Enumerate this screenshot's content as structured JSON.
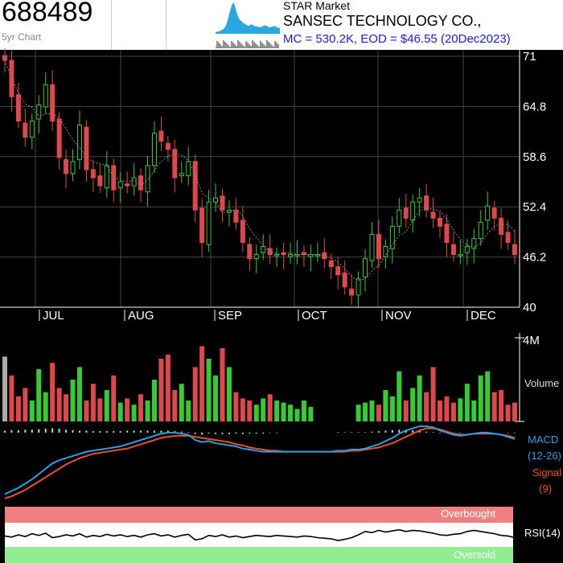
{
  "header": {
    "ticker": "688489",
    "period": "5yr Chart",
    "market": "STAR Market",
    "company": "SANSEC TECHNOLOGY CO.,",
    "summary": "MC = 530.2K, EOD = $46.55 (20Dec2023)"
  },
  "chart_data": [
    {
      "type": "candlestick",
      "y_ticks": [
        "71",
        "64.8",
        "58.6",
        "52.4",
        "46.2",
        "40"
      ],
      "ylim": [
        40,
        71
      ],
      "x_ticks": [
        "JUL",
        "AUG",
        "SEP",
        "OCT",
        "NOV",
        "DEC"
      ],
      "close": [
        70.5,
        66,
        63,
        61,
        63,
        65,
        67.5,
        63,
        58.5,
        56.5,
        58,
        62.5,
        57,
        56,
        55,
        57.5,
        54.5,
        55.5,
        55,
        56,
        54.5,
        57.5,
        61.5,
        60.5,
        59.5,
        56,
        56.5,
        58,
        52,
        48,
        53,
        53.5,
        52,
        52,
        50.5,
        48,
        46,
        46.5,
        47.5,
        46.5,
        46.5,
        46.5,
        46.5,
        46.5,
        46.5,
        46.5,
        46.5,
        46,
        45,
        44,
        42.5,
        41.5,
        43.5,
        46,
        49,
        46,
        47.5,
        50,
        52,
        51,
        53,
        53.5,
        52,
        51,
        50,
        48,
        46.5,
        46.5,
        47.5,
        48.5,
        50.5,
        52.5,
        51,
        49,
        48,
        46.5
      ],
      "color_key": {
        "up": "#33cc33",
        "down": "#e0474c",
        "ma_line": "#888888"
      }
    },
    {
      "type": "bar",
      "name": "Volume",
      "ylim_label": "4M",
      "values": [
        3.1,
        2.2,
        1.2,
        1.6,
        1.0,
        2.5,
        1.4,
        2.8,
        1.6,
        1.3,
        2.0,
        2.6,
        1.0,
        1.8,
        1.1,
        1.5,
        2.2,
        0.9,
        1.1,
        0.8,
        1.3,
        1.0,
        2.0,
        3.0,
        3.2,
        1.5,
        1.8,
        1.0,
        2.6,
        3.6,
        3.0,
        2.2,
        3.5,
        2.6,
        1.4,
        1.1,
        1.0,
        0.8,
        1.1,
        1.3,
        1.0,
        0.9,
        0.8,
        0.6,
        1.0,
        0.7,
        0.0,
        0.0,
        0.0,
        0.0,
        0.0,
        0.0,
        0.8,
        0.9,
        1.0,
        0.8,
        1.5,
        1.2,
        2.4,
        1.0,
        1.6,
        2.2,
        1.4,
        2.6,
        1.0,
        1.2,
        0.9,
        1.1,
        1.8,
        1.0,
        2.2,
        2.4,
        1.4,
        1.5,
        0.8,
        0.9
      ],
      "color_key": {
        "up": "#33cc33",
        "down": "#e0474c",
        "first": "#aaaaaa"
      }
    },
    {
      "type": "line",
      "name": "MACD",
      "label_lines": [
        "MACD",
        "(12-26)"
      ],
      "signal_label_lines": [
        "Signal",
        "(9)"
      ],
      "macd": [
        -3.2,
        -2.9,
        -2.6,
        -2.2,
        -1.8,
        -1.3,
        -0.8,
        -0.3,
        0.0,
        0.2,
        0.4,
        0.6,
        0.8,
        0.9,
        1.0,
        1.1,
        1.2,
        1.3,
        1.5,
        1.7,
        1.9,
        2.1,
        2.3,
        2.5,
        2.6,
        2.6,
        2.5,
        2.4,
        1.9,
        1.7,
        1.8,
        1.6,
        1.5,
        1.4,
        1.3,
        1.1,
        1.0,
        0.9,
        0.8,
        0.8,
        0.8,
        0.8,
        0.8,
        0.8,
        0.8,
        0.8,
        0.8,
        0.8,
        0.8,
        0.9,
        0.9,
        1.0,
        1.0,
        1.1,
        1.3,
        1.5,
        1.8,
        2.1,
        2.5,
        2.8,
        3.0,
        3.2,
        3.2,
        3.1,
        2.8,
        2.6,
        2.4,
        2.3,
        2.4,
        2.5,
        2.6,
        2.6,
        2.5,
        2.4,
        2.2,
        2.0
      ],
      "signal": [
        -3.6,
        -3.4,
        -3.1,
        -2.8,
        -2.4,
        -2.0,
        -1.6,
        -1.2,
        -0.8,
        -0.4,
        -0.1,
        0.2,
        0.4,
        0.6,
        0.7,
        0.8,
        0.9,
        1.0,
        1.1,
        1.3,
        1.5,
        1.7,
        1.9,
        2.1,
        2.2,
        2.3,
        2.3,
        2.3,
        2.2,
        2.1,
        2.0,
        1.9,
        1.8,
        1.7,
        1.5,
        1.4,
        1.2,
        1.1,
        1.0,
        0.9,
        0.9,
        0.8,
        0.8,
        0.8,
        0.8,
        0.8,
        0.8,
        0.8,
        0.8,
        0.8,
        0.8,
        0.9,
        0.9,
        1.0,
        1.1,
        1.2,
        1.4,
        1.6,
        1.9,
        2.2,
        2.5,
        2.8,
        3.0,
        3.0,
        2.9,
        2.7,
        2.5,
        2.4,
        2.4,
        2.5,
        2.5,
        2.5,
        2.5,
        2.4,
        2.3,
        2.1
      ],
      "color_key": {
        "macd": "#2a9ee8",
        "signal": "#f0501a",
        "histogram": "#b8e0b8"
      }
    },
    {
      "type": "line",
      "name": "RSI(14)",
      "band_labels": {
        "overbought": "Overbought",
        "oversold": "Oversold"
      },
      "ylim": [
        0,
        100
      ],
      "overbought": 70,
      "oversold": 30,
      "values": [
        48,
        46,
        50,
        47,
        52,
        49,
        53,
        45,
        47,
        50,
        48,
        52,
        46,
        49,
        47,
        51,
        48,
        50,
        47,
        49,
        46,
        50,
        52,
        48,
        50,
        46,
        49,
        51,
        41,
        43,
        49,
        47,
        50,
        46,
        48,
        45,
        47,
        49,
        48,
        47,
        49,
        48,
        47,
        46,
        48,
        47,
        45,
        44,
        43,
        40,
        42,
        45,
        50,
        56,
        54,
        58,
        55,
        57,
        59,
        56,
        58,
        57,
        55,
        53,
        50,
        49,
        51,
        52,
        56,
        58,
        56,
        54,
        52,
        49,
        48,
        45
      ],
      "color_key": {
        "line": "#000000",
        "overbought_band": "#f08080",
        "oversold_band": "#90ee90"
      }
    }
  ]
}
